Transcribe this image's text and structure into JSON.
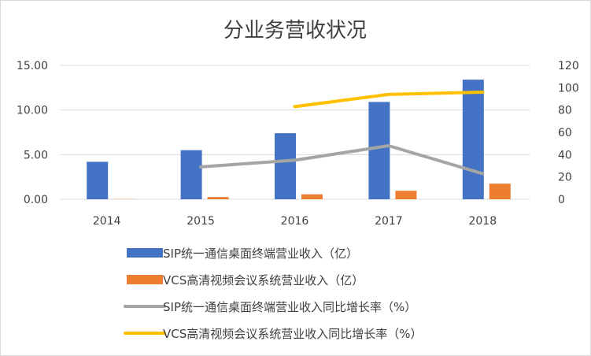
{
  "chart_data": {
    "type": "bar+line",
    "title": "分业务营收状况",
    "categories": [
      "2014",
      "2015",
      "2016",
      "2017",
      "2018"
    ],
    "left_axis": {
      "ylim": [
        0,
        15
      ],
      "ticks": [
        "0.00",
        "5.00",
        "10.00",
        "15.00"
      ],
      "tick_values": [
        0,
        5,
        10,
        15
      ]
    },
    "right_axis": {
      "ylim": [
        0,
        120
      ],
      "ticks": [
        "0",
        "20",
        "40",
        "60",
        "80",
        "100",
        "120"
      ],
      "tick_values": [
        0,
        20,
        40,
        60,
        80,
        100,
        120
      ]
    },
    "gridlines": true,
    "legend_position": "bottom",
    "bar_series": [
      {
        "name": "SIP统一通信桌面终端营业收入（亿）",
        "color": "#4472C4",
        "axis": "left",
        "values": [
          4.2,
          5.5,
          7.4,
          10.9,
          13.4
        ]
      },
      {
        "name": "VCS高清视频会议系统营业收入（亿）",
        "color": "#ED7D31",
        "axis": "left",
        "values": [
          0.02,
          0.25,
          0.55,
          0.95,
          1.75
        ]
      }
    ],
    "line_series": [
      {
        "name": "SIP统一通信桌面终端营业收入同比增长率（%）",
        "color": "#A5A5A5",
        "axis": "right",
        "values": [
          null,
          29,
          35,
          48,
          23
        ]
      },
      {
        "name": "VCS高清视频会议系统营业收入同比增长率（%）",
        "color": "#FFC000",
        "axis": "right",
        "values": [
          null,
          null,
          83,
          94,
          96
        ]
      }
    ]
  }
}
